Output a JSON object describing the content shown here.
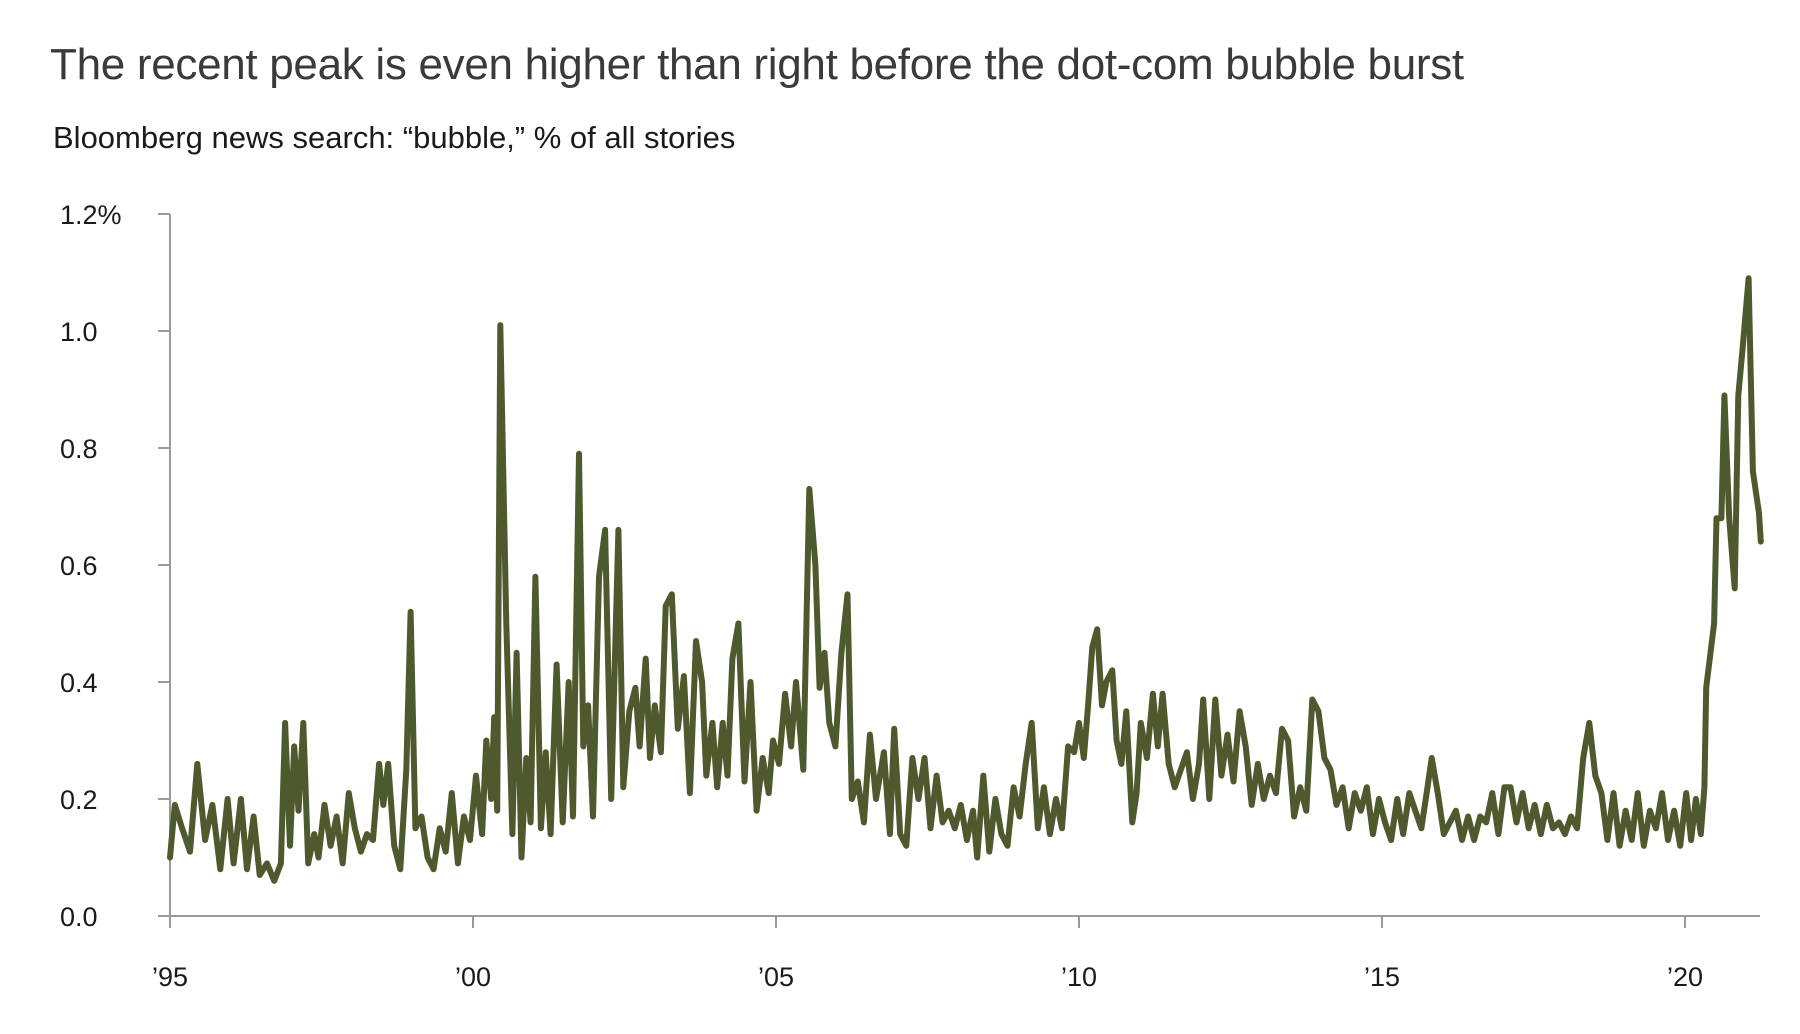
{
  "title": "The recent peak is even higher than right before the dot-com bubble burst",
  "subtitle": "Bloomberg news search: “bubble,” % of all stories",
  "chart_data": {
    "type": "line",
    "title": "The recent peak is even higher than right before the dot-com bubble burst",
    "subtitle": "Bloomberg news search: “bubble,” % of all stories",
    "xlabel": "",
    "ylabel": "",
    "ylim": [
      0,
      1.2
    ],
    "xlim": [
      1995,
      2021.3
    ],
    "grid": false,
    "y_ticks": [
      {
        "value": 0.0,
        "label": "0.0"
      },
      {
        "value": 0.2,
        "label": "0.2"
      },
      {
        "value": 0.4,
        "label": "0.4"
      },
      {
        "value": 0.6,
        "label": "0.6"
      },
      {
        "value": 0.8,
        "label": "0.8"
      },
      {
        "value": 1.0,
        "label": "1.0"
      },
      {
        "value": 1.2,
        "label": "1.2%"
      }
    ],
    "x_ticks": [
      {
        "value": 1995,
        "label": "’95"
      },
      {
        "value": 2000,
        "label": "’00"
      },
      {
        "value": 2005,
        "label": "’05"
      },
      {
        "value": 2010,
        "label": "’10"
      },
      {
        "value": 2015,
        "label": "’15"
      },
      {
        "value": 2020,
        "label": "’20"
      }
    ],
    "series": [
      {
        "color": "#4e5a2e",
        "points": [
          [
            1995.0,
            0.1
          ],
          [
            1995.08,
            0.19
          ],
          [
            1995.2,
            0.15
          ],
          [
            1995.33,
            0.11
          ],
          [
            1995.45,
            0.26
          ],
          [
            1995.58,
            0.13
          ],
          [
            1995.7,
            0.19
          ],
          [
            1995.83,
            0.08
          ],
          [
            1995.95,
            0.2
          ],
          [
            1996.05,
            0.09
          ],
          [
            1996.17,
            0.2
          ],
          [
            1996.27,
            0.08
          ],
          [
            1996.38,
            0.17
          ],
          [
            1996.48,
            0.07
          ],
          [
            1996.6,
            0.09
          ],
          [
            1996.72,
            0.06
          ],
          [
            1996.83,
            0.09
          ],
          [
            1996.9,
            0.33
          ],
          [
            1996.98,
            0.12
          ],
          [
            1997.05,
            0.29
          ],
          [
            1997.12,
            0.18
          ],
          [
            1997.2,
            0.33
          ],
          [
            1997.28,
            0.09
          ],
          [
            1997.38,
            0.14
          ],
          [
            1997.45,
            0.1
          ],
          [
            1997.55,
            0.19
          ],
          [
            1997.65,
            0.12
          ],
          [
            1997.75,
            0.17
          ],
          [
            1997.85,
            0.09
          ],
          [
            1997.95,
            0.21
          ],
          [
            1998.05,
            0.15
          ],
          [
            1998.15,
            0.11
          ],
          [
            1998.25,
            0.14
          ],
          [
            1998.35,
            0.13
          ],
          [
            1998.45,
            0.26
          ],
          [
            1998.52,
            0.19
          ],
          [
            1998.6,
            0.26
          ],
          [
            1998.7,
            0.12
          ],
          [
            1998.8,
            0.08
          ],
          [
            1998.9,
            0.25
          ],
          [
            1998.97,
            0.52
          ],
          [
            1999.05,
            0.15
          ],
          [
            1999.15,
            0.17
          ],
          [
            1999.25,
            0.1
          ],
          [
            1999.35,
            0.08
          ],
          [
            1999.45,
            0.15
          ],
          [
            1999.55,
            0.11
          ],
          [
            1999.65,
            0.21
          ],
          [
            1999.75,
            0.09
          ],
          [
            1999.85,
            0.17
          ],
          [
            1999.95,
            0.13
          ],
          [
            2000.05,
            0.24
          ],
          [
            2000.15,
            0.14
          ],
          [
            2000.22,
            0.3
          ],
          [
            2000.3,
            0.2
          ],
          [
            2000.35,
            0.34
          ],
          [
            2000.4,
            0.18
          ],
          [
            2000.45,
            1.01
          ],
          [
            2000.55,
            0.5
          ],
          [
            2000.65,
            0.14
          ],
          [
            2000.72,
            0.45
          ],
          [
            2000.8,
            0.1
          ],
          [
            2000.88,
            0.27
          ],
          [
            2000.95,
            0.16
          ],
          [
            2001.03,
            0.58
          ],
          [
            2001.12,
            0.15
          ],
          [
            2001.2,
            0.28
          ],
          [
            2001.28,
            0.14
          ],
          [
            2001.38,
            0.43
          ],
          [
            2001.48,
            0.16
          ],
          [
            2001.58,
            0.4
          ],
          [
            2001.65,
            0.17
          ],
          [
            2001.75,
            0.79
          ],
          [
            2001.82,
            0.29
          ],
          [
            2001.9,
            0.36
          ],
          [
            2001.98,
            0.17
          ],
          [
            2002.08,
            0.58
          ],
          [
            2002.18,
            0.66
          ],
          [
            2002.28,
            0.2
          ],
          [
            2002.4,
            0.66
          ],
          [
            2002.48,
            0.22
          ],
          [
            2002.58,
            0.35
          ],
          [
            2002.68,
            0.39
          ],
          [
            2002.75,
            0.29
          ],
          [
            2002.85,
            0.44
          ],
          [
            2002.92,
            0.27
          ],
          [
            2003.0,
            0.36
          ],
          [
            2003.1,
            0.28
          ],
          [
            2003.18,
            0.53
          ],
          [
            2003.28,
            0.55
          ],
          [
            2003.38,
            0.32
          ],
          [
            2003.48,
            0.41
          ],
          [
            2003.58,
            0.21
          ],
          [
            2003.68,
            0.47
          ],
          [
            2003.78,
            0.4
          ],
          [
            2003.85,
            0.24
          ],
          [
            2003.95,
            0.33
          ],
          [
            2004.03,
            0.22
          ],
          [
            2004.12,
            0.33
          ],
          [
            2004.2,
            0.24
          ],
          [
            2004.28,
            0.44
          ],
          [
            2004.38,
            0.5
          ],
          [
            2004.48,
            0.23
          ],
          [
            2004.58,
            0.4
          ],
          [
            2004.68,
            0.18
          ],
          [
            2004.78,
            0.27
          ],
          [
            2004.88,
            0.21
          ],
          [
            2004.95,
            0.3
          ],
          [
            2005.05,
            0.26
          ],
          [
            2005.15,
            0.38
          ],
          [
            2005.25,
            0.29
          ],
          [
            2005.33,
            0.4
          ],
          [
            2005.45,
            0.25
          ],
          [
            2005.55,
            0.73
          ],
          [
            2005.65,
            0.6
          ],
          [
            2005.72,
            0.39
          ],
          [
            2005.8,
            0.45
          ],
          [
            2005.88,
            0.33
          ],
          [
            2005.98,
            0.29
          ],
          [
            2006.08,
            0.45
          ],
          [
            2006.18,
            0.55
          ],
          [
            2006.25,
            0.2
          ],
          [
            2006.35,
            0.23
          ],
          [
            2006.45,
            0.16
          ],
          [
            2006.55,
            0.31
          ],
          [
            2006.65,
            0.2
          ],
          [
            2006.78,
            0.28
          ],
          [
            2006.88,
            0.14
          ],
          [
            2006.95,
            0.32
          ],
          [
            2007.05,
            0.14
          ],
          [
            2007.15,
            0.12
          ],
          [
            2007.25,
            0.27
          ],
          [
            2007.35,
            0.2
          ],
          [
            2007.45,
            0.27
          ],
          [
            2007.55,
            0.15
          ],
          [
            2007.65,
            0.24
          ],
          [
            2007.75,
            0.16
          ],
          [
            2007.85,
            0.18
          ],
          [
            2007.95,
            0.15
          ],
          [
            2008.05,
            0.19
          ],
          [
            2008.15,
            0.13
          ],
          [
            2008.25,
            0.18
          ],
          [
            2008.32,
            0.1
          ],
          [
            2008.42,
            0.24
          ],
          [
            2008.52,
            0.11
          ],
          [
            2008.62,
            0.2
          ],
          [
            2008.72,
            0.14
          ],
          [
            2008.82,
            0.12
          ],
          [
            2008.92,
            0.22
          ],
          [
            2009.02,
            0.17
          ],
          [
            2009.12,
            0.26
          ],
          [
            2009.22,
            0.33
          ],
          [
            2009.32,
            0.15
          ],
          [
            2009.42,
            0.22
          ],
          [
            2009.52,
            0.14
          ],
          [
            2009.62,
            0.2
          ],
          [
            2009.72,
            0.15
          ],
          [
            2009.82,
            0.29
          ],
          [
            2009.92,
            0.28
          ],
          [
            2010.0,
            0.33
          ],
          [
            2010.08,
            0.27
          ],
          [
            2010.15,
            0.36
          ],
          [
            2010.22,
            0.46
          ],
          [
            2010.3,
            0.49
          ],
          [
            2010.38,
            0.36
          ],
          [
            2010.45,
            0.4
          ],
          [
            2010.55,
            0.42
          ],
          [
            2010.62,
            0.3
          ],
          [
            2010.7,
            0.26
          ],
          [
            2010.78,
            0.35
          ],
          [
            2010.88,
            0.16
          ],
          [
            2010.95,
            0.21
          ],
          [
            2011.02,
            0.33
          ],
          [
            2011.12,
            0.27
          ],
          [
            2011.22,
            0.38
          ],
          [
            2011.3,
            0.29
          ],
          [
            2011.38,
            0.38
          ],
          [
            2011.48,
            0.26
          ],
          [
            2011.58,
            0.22
          ],
          [
            2011.68,
            0.25
          ],
          [
            2011.78,
            0.28
          ],
          [
            2011.88,
            0.2
          ],
          [
            2011.98,
            0.26
          ],
          [
            2012.05,
            0.37
          ],
          [
            2012.15,
            0.2
          ],
          [
            2012.25,
            0.37
          ],
          [
            2012.35,
            0.24
          ],
          [
            2012.45,
            0.31
          ],
          [
            2012.55,
            0.23
          ],
          [
            2012.65,
            0.35
          ],
          [
            2012.75,
            0.29
          ],
          [
            2012.85,
            0.19
          ],
          [
            2012.95,
            0.26
          ],
          [
            2013.05,
            0.2
          ],
          [
            2013.15,
            0.24
          ],
          [
            2013.25,
            0.21
          ],
          [
            2013.35,
            0.32
          ],
          [
            2013.45,
            0.3
          ],
          [
            2013.55,
            0.17
          ],
          [
            2013.65,
            0.22
          ],
          [
            2013.75,
            0.18
          ],
          [
            2013.85,
            0.37
          ],
          [
            2013.95,
            0.35
          ],
          [
            2014.05,
            0.27
          ],
          [
            2014.15,
            0.25
          ],
          [
            2014.25,
            0.19
          ],
          [
            2014.35,
            0.22
          ],
          [
            2014.45,
            0.15
          ],
          [
            2014.55,
            0.21
          ],
          [
            2014.65,
            0.18
          ],
          [
            2014.75,
            0.22
          ],
          [
            2014.85,
            0.14
          ],
          [
            2014.95,
            0.2
          ],
          [
            2015.05,
            0.16
          ],
          [
            2015.15,
            0.13
          ],
          [
            2015.25,
            0.2
          ],
          [
            2015.35,
            0.14
          ],
          [
            2015.45,
            0.21
          ],
          [
            2015.55,
            0.18
          ],
          [
            2015.65,
            0.15
          ],
          [
            2015.75,
            0.22
          ],
          [
            2015.82,
            0.27
          ],
          [
            2015.92,
            0.21
          ],
          [
            2016.02,
            0.14
          ],
          [
            2016.12,
            0.16
          ],
          [
            2016.22,
            0.18
          ],
          [
            2016.32,
            0.13
          ],
          [
            2016.42,
            0.17
          ],
          [
            2016.52,
            0.13
          ],
          [
            2016.62,
            0.17
          ],
          [
            2016.72,
            0.16
          ],
          [
            2016.82,
            0.21
          ],
          [
            2016.92,
            0.14
          ],
          [
            2017.02,
            0.22
          ],
          [
            2017.12,
            0.22
          ],
          [
            2017.22,
            0.16
          ],
          [
            2017.32,
            0.21
          ],
          [
            2017.42,
            0.15
          ],
          [
            2017.52,
            0.19
          ],
          [
            2017.62,
            0.14
          ],
          [
            2017.72,
            0.19
          ],
          [
            2017.82,
            0.15
          ],
          [
            2017.92,
            0.16
          ],
          [
            2018.02,
            0.14
          ],
          [
            2018.12,
            0.17
          ],
          [
            2018.22,
            0.15
          ],
          [
            2018.32,
            0.27
          ],
          [
            2018.42,
            0.33
          ],
          [
            2018.52,
            0.24
          ],
          [
            2018.62,
            0.21
          ],
          [
            2018.72,
            0.13
          ],
          [
            2018.82,
            0.21
          ],
          [
            2018.92,
            0.12
          ],
          [
            2019.02,
            0.18
          ],
          [
            2019.12,
            0.13
          ],
          [
            2019.22,
            0.21
          ],
          [
            2019.32,
            0.12
          ],
          [
            2019.42,
            0.18
          ],
          [
            2019.52,
            0.15
          ],
          [
            2019.62,
            0.21
          ],
          [
            2019.72,
            0.13
          ],
          [
            2019.82,
            0.18
          ],
          [
            2019.92,
            0.12
          ],
          [
            2020.02,
            0.21
          ],
          [
            2020.1,
            0.13
          ],
          [
            2020.18,
            0.2
          ],
          [
            2020.26,
            0.14
          ],
          [
            2020.32,
            0.22
          ],
          [
            2020.35,
            0.39
          ],
          [
            2020.48,
            0.5
          ],
          [
            2020.52,
            0.68
          ],
          [
            2020.6,
            0.68
          ],
          [
            2020.65,
            0.89
          ],
          [
            2020.73,
            0.68
          ],
          [
            2020.82,
            0.56
          ],
          [
            2020.88,
            0.89
          ],
          [
            2020.95,
            0.97
          ],
          [
            2021.05,
            1.09
          ],
          [
            2021.12,
            0.76
          ],
          [
            2021.22,
            0.69
          ],
          [
            2021.25,
            0.64
          ]
        ]
      }
    ]
  }
}
